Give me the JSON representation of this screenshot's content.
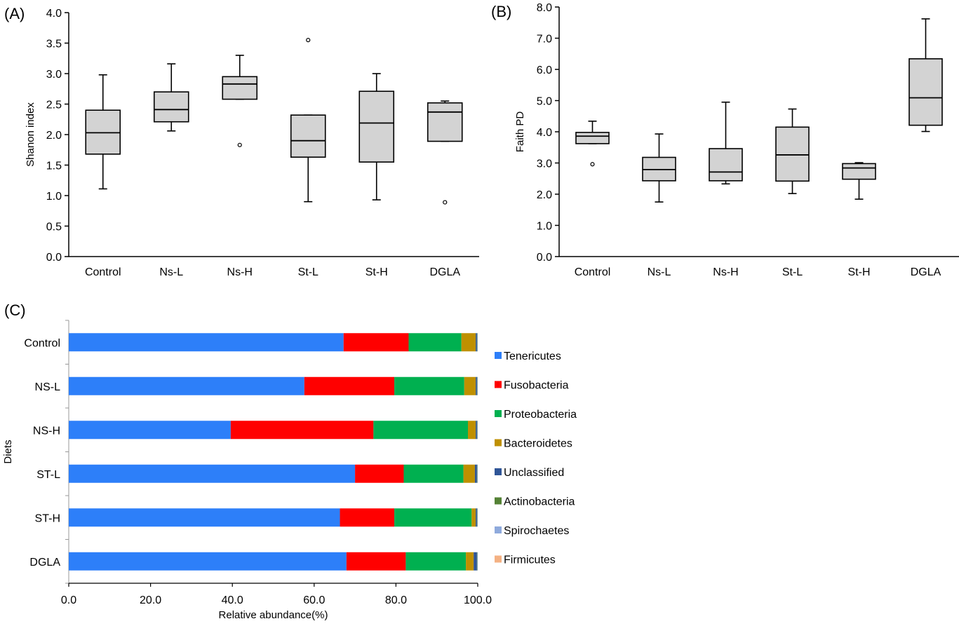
{
  "chart_data": [
    {
      "panel": "(A)",
      "type": "box",
      "ylabel": "Shanon index",
      "ylim": [
        0.0,
        4.0
      ],
      "yticks": [
        "0.0",
        "0.5",
        "1.0",
        "1.5",
        "2.0",
        "2.5",
        "3.0",
        "3.5",
        "4.0"
      ],
      "categories": [
        "Control",
        "Ns-L",
        "Ns-H",
        "St-L",
        "St-H",
        "DGLA"
      ],
      "boxes": [
        {
          "min": 1.11,
          "q1": 1.68,
          "median": 2.03,
          "q3": 2.4,
          "max": 2.98,
          "outliers": []
        },
        {
          "min": 2.06,
          "q1": 2.21,
          "median": 2.41,
          "q3": 2.7,
          "max": 3.16,
          "outliers": []
        },
        {
          "min": 2.58,
          "q1": 2.58,
          "median": 2.83,
          "q3": 2.95,
          "max": 3.3,
          "outliers": [
            1.83
          ]
        },
        {
          "min": 0.9,
          "q1": 1.63,
          "median": 1.9,
          "q3": 2.32,
          "max": 2.32,
          "outliers": [
            3.55
          ]
        },
        {
          "min": 0.93,
          "q1": 1.55,
          "median": 2.19,
          "q3": 2.71,
          "max": 3.0,
          "outliers": []
        },
        {
          "min": 1.89,
          "q1": 1.89,
          "median": 2.37,
          "q3": 2.52,
          "max": 2.55,
          "outliers": [
            0.89
          ]
        }
      ]
    },
    {
      "panel": "(B)",
      "type": "box",
      "ylabel": "Faith PD",
      "ylim": [
        0.0,
        8.0
      ],
      "yticks": [
        "0.0",
        "1.0",
        "2.0",
        "3.0",
        "4.0",
        "5.0",
        "6.0",
        "7.0",
        "8.0"
      ],
      "categories": [
        "Control",
        "Ns-L",
        "Ns-H",
        "St-L",
        "St-H",
        "DGLA"
      ],
      "boxes": [
        {
          "min": 3.62,
          "q1": 3.62,
          "median": 3.86,
          "q3": 3.98,
          "max": 4.34,
          "outliers": [
            2.96
          ]
        },
        {
          "min": 1.75,
          "q1": 2.43,
          "median": 2.79,
          "q3": 3.18,
          "max": 3.93,
          "outliers": []
        },
        {
          "min": 2.33,
          "q1": 2.43,
          "median": 2.71,
          "q3": 3.46,
          "max": 4.95,
          "outliers": []
        },
        {
          "min": 2.02,
          "q1": 2.42,
          "median": 3.26,
          "q3": 4.15,
          "max": 4.73,
          "outliers": []
        },
        {
          "min": 1.84,
          "q1": 2.48,
          "median": 2.84,
          "q3": 2.98,
          "max": 3.01,
          "outliers": []
        },
        {
          "min": 4.01,
          "q1": 4.21,
          "median": 5.09,
          "q3": 6.34,
          "max": 7.62,
          "outliers": []
        }
      ]
    },
    {
      "panel": "(C)",
      "type": "bar",
      "orientation": "horizontal",
      "stacked": true,
      "xlabel": "Relative abundance(%)",
      "ylabel": "Diets",
      "xlim": [
        0.0,
        100.0
      ],
      "xticks": [
        "0.0",
        "20.0",
        "40.0",
        "60.0",
        "80.0",
        "100.0"
      ],
      "categories": [
        "Control",
        "NS-L",
        "NS-H",
        "ST-L",
        "ST-H",
        "DGLA"
      ],
      "legend_position": "right",
      "series": [
        {
          "name": "Tenericutes",
          "color": "#2d7ff9",
          "values": [
            67.2,
            57.6,
            39.6,
            70.0,
            66.3,
            67.9
          ]
        },
        {
          "name": "Fusobacteria",
          "color": "#ff0000",
          "values": [
            15.9,
            22.0,
            34.9,
            11.9,
            13.3,
            14.5
          ]
        },
        {
          "name": "Proteobacteria",
          "color": "#00b050",
          "values": [
            12.9,
            17.1,
            23.1,
            14.6,
            18.9,
            14.7
          ]
        },
        {
          "name": "Bacteroidetes",
          "color": "#bf9000",
          "values": [
            3.5,
            2.8,
            1.9,
            2.8,
            1.0,
            1.9
          ]
        },
        {
          "name": "Unclassified",
          "color": "#2f5597",
          "values": [
            0.3,
            0.3,
            0.3,
            0.5,
            0.3,
            0.8
          ]
        },
        {
          "name": "Actinobacteria",
          "color": "#548235",
          "values": [
            0.1,
            0.1,
            0.1,
            0.1,
            0.1,
            0.1
          ]
        },
        {
          "name": "Spirochaetes",
          "color": "#8faadc",
          "values": [
            0.1,
            0.1,
            0.1,
            0.1,
            0.1,
            0.1
          ]
        },
        {
          "name": "Firmicutes",
          "color": "#f4b183",
          "values": [
            0.0,
            0.0,
            0.0,
            0.0,
            0.0,
            0.0
          ]
        }
      ]
    }
  ]
}
